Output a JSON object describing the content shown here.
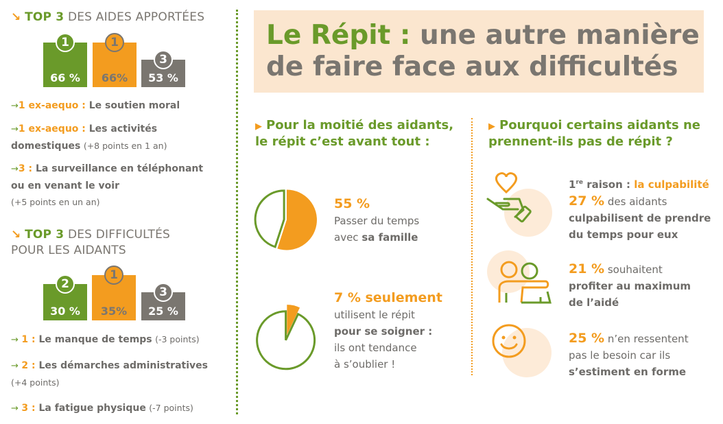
{
  "colors": {
    "green": "#6a9a2a",
    "orange": "#f39c1f",
    "gray": "#7a7670",
    "peach": "#fbe6cf"
  },
  "aides": {
    "heading_strong": "TOP 3",
    "heading_rest": "DES AIDES APPORTÉES",
    "bars": [
      {
        "rank": "1",
        "value": "66 %",
        "pct": 66,
        "color": "green"
      },
      {
        "rank": "1",
        "value": "66%",
        "pct": 66,
        "color": "orange"
      },
      {
        "rank": "3",
        "value": "53 %",
        "pct": 53,
        "color": "gray"
      }
    ],
    "items": [
      {
        "rank": "1 ex-aequo",
        "sep": " : ",
        "label": "Le soutien moral",
        "note": ""
      },
      {
        "rank": "1 ex-aequo",
        "sep": " : ",
        "label": "Les activités domestiques",
        "note": "(+8 points en 1 an)"
      },
      {
        "rank": "3",
        "sep": " : ",
        "label": "La surveillance en téléphonant ou en venant le voir",
        "note": "(+5 points en un an)"
      }
    ]
  },
  "difficultes": {
    "heading_strong": "TOP 3",
    "heading_rest": "DES DIFFICULTÉS",
    "heading_line2": "POUR LES AIDANTS",
    "bars": [
      {
        "rank": "2",
        "value": "30 %",
        "pct": 30,
        "color": "green"
      },
      {
        "rank": "1",
        "value": "35%",
        "pct": 35,
        "color": "orange"
      },
      {
        "rank": "3",
        "value": "25 %",
        "pct": 25,
        "color": "gray"
      }
    ],
    "items": [
      {
        "rank": "1",
        "sep": " : ",
        "label": "Le manque de temps",
        "note": "(-3 points)"
      },
      {
        "rank": "2",
        "sep": " : ",
        "label": "Les démarches administratives",
        "note": "(+4 points)"
      },
      {
        "rank": "3",
        "sep": " : ",
        "label": "La fatigue physique",
        "note": "(-7 points)"
      }
    ]
  },
  "title": {
    "part1": "Le Répit :",
    "part2": "une autre manière",
    "line2": "de faire face aux difficultés"
  },
  "repit": {
    "heading": "Pour la moitié des aidants, le répit c’est avant tout :",
    "stat1": {
      "value": "55 %",
      "pct": 55,
      "line1": "Passer du temps",
      "line2_pre": "avec ",
      "line2_bold": "sa famille"
    },
    "stat2": {
      "value": "7 % seulement",
      "pct": 7,
      "line1": "utilisent le répit",
      "line2": "pour se soigner :",
      "line3": "ils ont tendance",
      "line4": "à s’oublier !"
    }
  },
  "pourquoi": {
    "heading": "Pourquoi certains aidants ne prennent-ils pas de répit ?",
    "r1": {
      "icon": "heart-hand-icon",
      "pre": "1",
      "sup": "re",
      "raison": " raison : ",
      "highlight": "la culpabilité",
      "value": "27 %",
      "rest": " des aidants",
      "bold1": "culpabilisent de prendre",
      "bold2": "du temps pour eux"
    },
    "r2": {
      "icon": "two-people-icon",
      "value": "21 %",
      "rest": " souhaitent",
      "bold1": "profiter au maximum",
      "bold2": "de l’aidé"
    },
    "r3": {
      "icon": "smiley-icon",
      "value": "25 %",
      "rest": " n’en ressentent",
      "line2": "pas le besoin car ils",
      "bold": "s’estiment en forme"
    }
  }
}
